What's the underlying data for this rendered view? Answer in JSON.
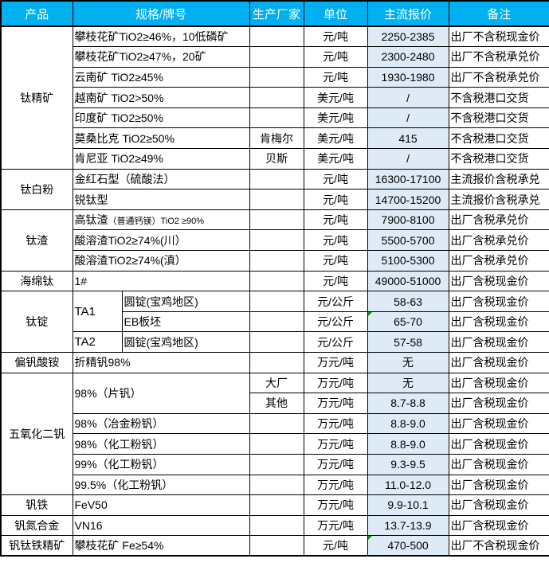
{
  "table": {
    "colors": {
      "header_bg": "#00B0F0",
      "header_text": "#FFFFFF",
      "price_col_bg": "#DEEBF7",
      "border": "#000000",
      "comment_marker": "#009900"
    },
    "header": {
      "product": "产品",
      "spec": "规格/牌号",
      "manufacturer": "生产厂家",
      "unit": "单位",
      "price": "主流报价",
      "note": "备注"
    },
    "groups": [
      {
        "product": "钛精矿",
        "rows": [
          {
            "spec": "攀枝花矿TiO2≥46%，10低磷矿",
            "manufacturer": "",
            "unit": "元/吨",
            "price": "2250-2385",
            "note": "出厂不含税现金价"
          },
          {
            "spec": "攀枝花矿TiO2≥47%，20矿",
            "manufacturer": "",
            "unit": "元/吨",
            "price": "2300-2480",
            "note": "出厂不含税承兑价"
          },
          {
            "spec": "云南矿 TiO2≥45%",
            "manufacturer": "",
            "unit": "元/吨",
            "price": "1930-1980",
            "note": "出厂不含税承兑价"
          },
          {
            "spec": "越南矿 TiO2>50%",
            "manufacturer": "",
            "unit": "美元/吨",
            "price": "/",
            "note": "不含税港口交货"
          },
          {
            "spec": "印度矿 TiO2≥50%",
            "manufacturer": "",
            "unit": "美元/吨",
            "price": "/",
            "note": "不含税港口交货"
          },
          {
            "spec": "莫桑比克 TiO2≥50%",
            "manufacturer": "肯梅尔",
            "unit": "美元/吨",
            "price": "415",
            "note": "不含税港口交货"
          },
          {
            "spec": "肯尼亚 TiO2≥49%",
            "manufacturer": "贝斯",
            "unit": "美元/吨",
            "price": "/",
            "note": "不含税港口交货"
          }
        ]
      },
      {
        "product": "钛白粉",
        "rows": [
          {
            "spec": "金红石型（硫酸法）",
            "manufacturer": "",
            "unit": "元/吨",
            "price": "16300-17100",
            "note": "主流报价含税承兑"
          },
          {
            "spec": "锐钛型",
            "manufacturer": "",
            "unit": "元/吨",
            "price": "14700-15200",
            "note": "主流报价含税承兑"
          }
        ]
      },
      {
        "product": "钛渣",
        "rows": [
          {
            "spec": "高钛渣",
            "spec_suffix": "（普通钙镁）TiO2 ≥90%",
            "manufacturer": "",
            "unit": "元/吨",
            "price": "7900-8100",
            "note": "出厂含税承兑价"
          },
          {
            "spec": "酸溶渣TiO2≥74%(川）",
            "manufacturer": "",
            "unit": "元/吨",
            "price": "5500-5700",
            "note": "出厂含税承兑价"
          },
          {
            "spec": "酸溶渣TiO2≥74%(滇）",
            "manufacturer": "",
            "unit": "元/吨",
            "price": "5100-5300",
            "note": "出厂含税承兑价"
          }
        ]
      },
      {
        "product": "海绵钛",
        "rows": [
          {
            "spec": "1#",
            "manufacturer": "",
            "unit": "元/吨",
            "price": "49000-51000",
            "note": "出厂含税现金价"
          }
        ]
      },
      {
        "product": "钛锭",
        "rows": [
          {
            "spec1": "TA1",
            "spec1_rowspan": 2,
            "spec2": "圆锭(宝鸡地区)",
            "manufacturer": "",
            "unit": "元/公斤",
            "price": "58-63",
            "note": "出厂含税现金价"
          },
          {
            "spec2": "EB板坯",
            "manufacturer": "",
            "unit": "元/公斤",
            "price": "65-70",
            "price_marker": true,
            "note": "出厂含税现金价"
          },
          {
            "spec1": "TA2",
            "spec2": "圆锭(宝鸡地区)",
            "manufacturer": "",
            "unit": "元/公斤",
            "price": "57-58",
            "note": "出厂含税现金价"
          }
        ]
      },
      {
        "product": "偏钒酸铵",
        "rows": [
          {
            "spec": "折精钒98%",
            "manufacturer": "",
            "unit": "万元/吨",
            "price": "无",
            "note": "出厂含税现金价"
          }
        ]
      },
      {
        "product": "五氧化二钒",
        "rows": [
          {
            "spec": "98%（片钒）",
            "spec_rowspan": 2,
            "manufacturer": "大厂",
            "unit": "万元/吨",
            "price": "无",
            "note": "出厂含税现金价"
          },
          {
            "manufacturer": "其他",
            "unit": "万元/吨",
            "price": "8.7-8.8",
            "note": "出厂含税现金价"
          },
          {
            "spec": "98%（冶金粉钒）",
            "manufacturer": "",
            "unit": "万元/吨",
            "price": "8.8-9.0",
            "note": "出厂含税现金价"
          },
          {
            "spec": "98%（化工粉钒）",
            "manufacturer": "",
            "unit": "万元/吨",
            "price": "8.8-9.0",
            "note": "出厂含税现金价"
          },
          {
            "spec": "99%（化工粉钒）",
            "manufacturer": "",
            "unit": "万元/吨",
            "price": "9.3-9.5",
            "note": "出厂含税现金价"
          },
          {
            "spec": "99.5%（化工粉钒）",
            "manufacturer": "",
            "unit": "万元/吨",
            "price": "11.0-12.0",
            "note": "出厂含税现金价"
          }
        ]
      },
      {
        "product": "钒铁",
        "rows": [
          {
            "spec": "FeV50",
            "manufacturer": "",
            "unit": "万元/吨",
            "price": "9.9-10.1",
            "note": "出厂含税现金价"
          }
        ]
      },
      {
        "product": "钒氮合金",
        "rows": [
          {
            "spec": "VN16",
            "manufacturer": "",
            "unit": "万元/吨",
            "price": "13.7-13.9",
            "note": "出厂含税现金价"
          }
        ]
      },
      {
        "product": "钒钛铁精矿",
        "rows": [
          {
            "spec": "攀枝花矿 Fe≥54%",
            "manufacturer": "",
            "unit": "元/吨",
            "price": "470-500",
            "price_marker": true,
            "note": "出厂不含税现金价"
          }
        ]
      }
    ]
  }
}
